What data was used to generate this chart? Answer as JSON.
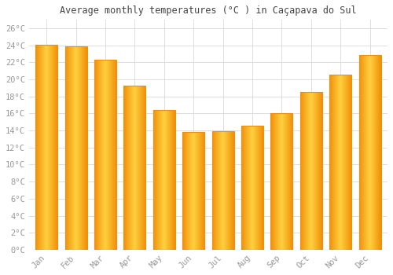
{
  "title": "Average monthly temperatures (°C ) in Caçapava do Sul",
  "months": [
    "Jan",
    "Feb",
    "Mar",
    "Apr",
    "May",
    "Jun",
    "Jul",
    "Aug",
    "Sep",
    "Oct",
    "Nov",
    "Dec"
  ],
  "values": [
    24.1,
    23.9,
    22.3,
    19.3,
    16.4,
    13.8,
    13.9,
    14.6,
    16.0,
    18.5,
    20.6,
    22.9
  ],
  "bar_color_center": "#FFD040",
  "bar_color_edge": "#F0900A",
  "background_color": "#FFFFFF",
  "grid_color": "#DDDDDD",
  "tick_label_color": "#999999",
  "title_color": "#444444",
  "ylim": [
    0,
    27
  ],
  "ytick_step": 2,
  "bar_width": 0.75,
  "gradient_steps": 100
}
